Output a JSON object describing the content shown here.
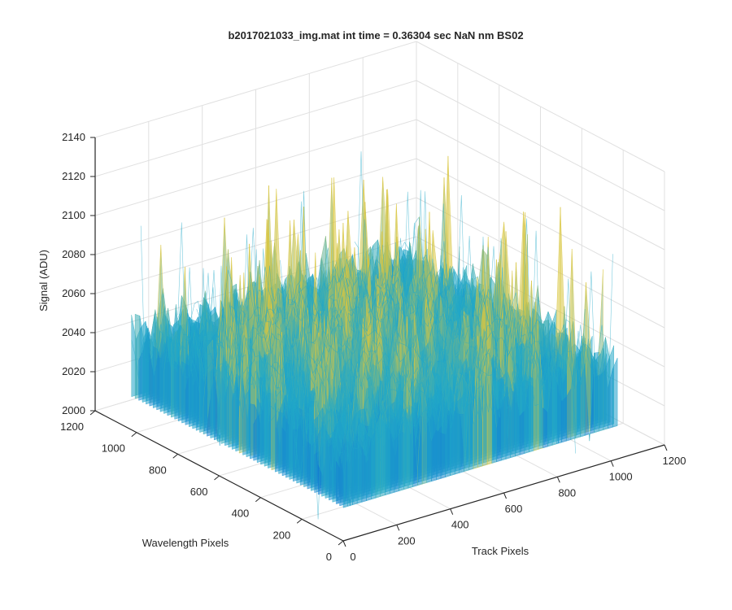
{
  "chart_data": {
    "type": "surface",
    "title": "b2017021033_img.mat int time = 0.36304 sec  NaN nm BS02",
    "xlabel": "Track Pixels",
    "ylabel": "Wavelength Pixels",
    "zlabel": "Signal (ADU)",
    "x_ticks": [
      "0",
      "200",
      "400",
      "600",
      "800",
      "1000",
      "1200"
    ],
    "y_ticks": [
      "0",
      "200",
      "400",
      "600",
      "800",
      "1000",
      "1200"
    ],
    "z_ticks": [
      "2000",
      "2020",
      "2040",
      "2060",
      "2080",
      "2100",
      "2120",
      "2140"
    ],
    "xlim": [
      0,
      1200
    ],
    "ylim": [
      0,
      1200
    ],
    "zlim": [
      2000,
      2140
    ],
    "surface_extent": {
      "x": [
        0,
        1024
      ],
      "y": [
        0,
        1024
      ]
    },
    "approx_signal_range": [
      2002,
      2138
    ],
    "approx_mean_signal": 2045,
    "colormap": "parula",
    "grid": true,
    "box": "three back planes"
  },
  "colors": {
    "axis": "#262626",
    "grid": "#e0e0e0",
    "surface_low": "#0f6fd6",
    "surface_mid": "#21a9c8",
    "surface_high": "#d9c640"
  }
}
